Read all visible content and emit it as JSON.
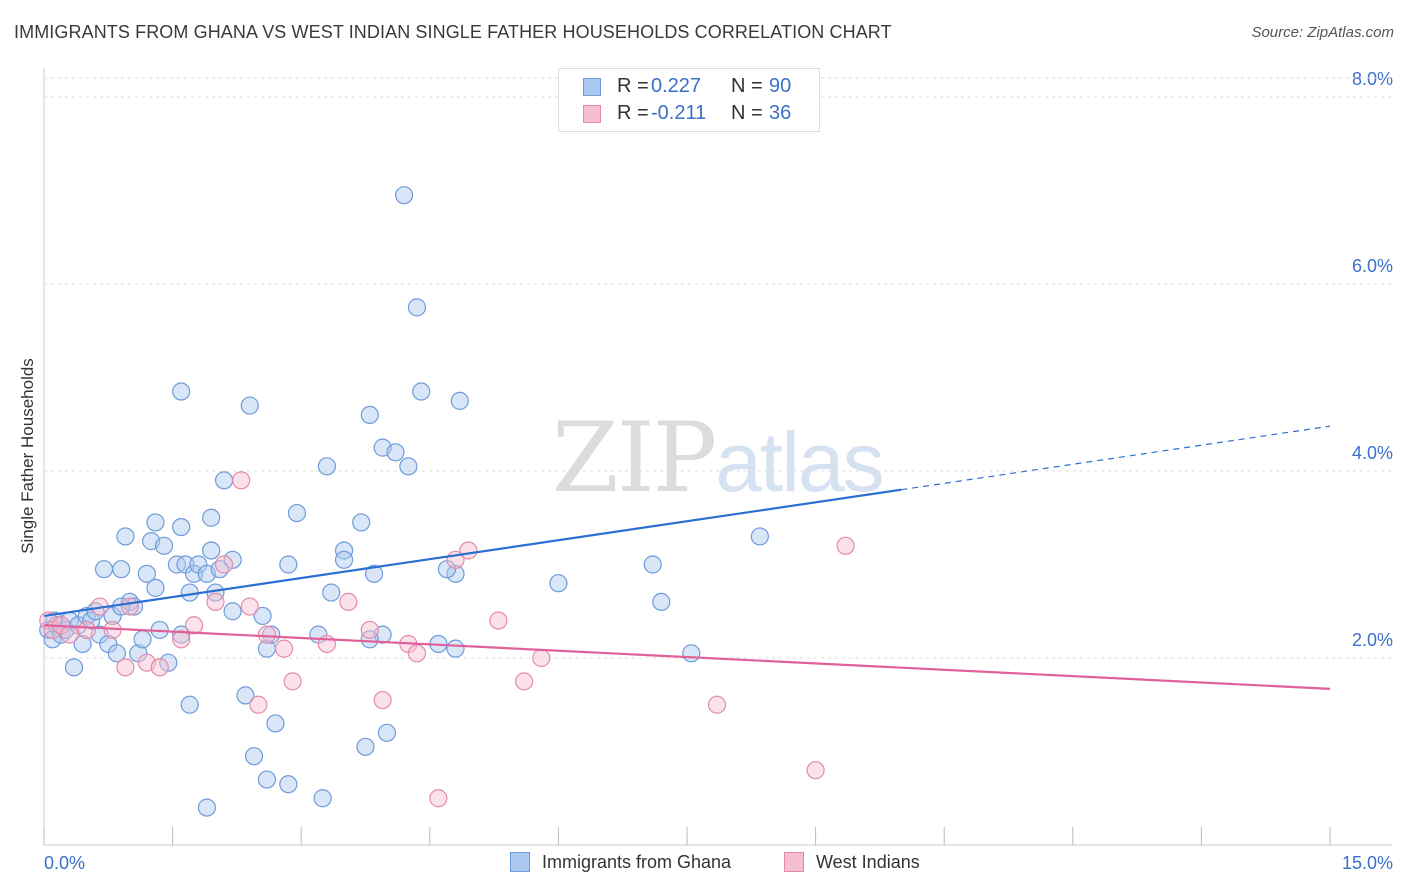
{
  "title": "IMMIGRANTS FROM GHANA VS WEST INDIAN SINGLE FATHER HOUSEHOLDS CORRELATION CHART",
  "source": "Source: ZipAtlas.com",
  "watermark": {
    "zip": "ZIP",
    "atlas": "atlas"
  },
  "legend_top": {
    "rows": [
      {
        "label": "R =",
        "r": "0.227",
        "n_label": "N =",
        "n": "90"
      },
      {
        "label": "R =",
        "r": "-0.211",
        "n_label": "N =",
        "n": "36"
      }
    ]
  },
  "colors": {
    "blue_fill": "#aac8f0",
    "blue_stroke": "#6f9bd8",
    "blue_line": "#2a6fd1",
    "pink_fill": "#f6bfd0",
    "pink_stroke": "#e58aa9",
    "pink_line": "#e0609a",
    "axis_text": "#3a70c8",
    "grid": "#dddddd"
  },
  "chart_data": {
    "type": "scatter",
    "title": "IMMIGRANTS FROM GHANA VS WEST INDIAN SINGLE FATHER HOUSEHOLDS CORRELATION CHART",
    "xlabel": "",
    "ylabel": "Single Father Households",
    "xlim": [
      0,
      15
    ],
    "ylim": [
      0,
      8
    ],
    "x_tick_labels": [
      "0.0%",
      "15.0%"
    ],
    "y_ticks": [
      2,
      4,
      6,
      8
    ],
    "y_tick_labels": [
      "2.0%",
      "4.0%",
      "6.0%",
      "8.0%"
    ],
    "grid": true,
    "series": [
      {
        "name": "Immigrants from Ghana",
        "color": "blue",
        "points": [
          [
            0.05,
            2.3
          ],
          [
            0.1,
            2.2
          ],
          [
            0.12,
            2.4
          ],
          [
            0.15,
            2.35
          ],
          [
            0.2,
            2.25
          ],
          [
            0.25,
            2.3
          ],
          [
            0.3,
            2.4
          ],
          [
            0.35,
            1.9
          ],
          [
            0.4,
            2.35
          ],
          [
            0.45,
            2.15
          ],
          [
            0.5,
            2.45
          ],
          [
            0.55,
            2.4
          ],
          [
            0.6,
            2.5
          ],
          [
            0.65,
            2.25
          ],
          [
            0.7,
            2.95
          ],
          [
            0.75,
            2.15
          ],
          [
            0.8,
            2.45
          ],
          [
            0.85,
            2.05
          ],
          [
            0.9,
            2.95
          ],
          [
            0.95,
            3.3
          ],
          [
            1.0,
            2.6
          ],
          [
            1.05,
            2.55
          ],
          [
            1.1,
            2.05
          ],
          [
            1.15,
            2.2
          ],
          [
            1.2,
            2.9
          ],
          [
            1.25,
            3.25
          ],
          [
            1.3,
            2.75
          ],
          [
            1.35,
            2.3
          ],
          [
            1.4,
            3.2
          ],
          [
            1.45,
            1.95
          ],
          [
            1.55,
            3.0
          ],
          [
            1.6,
            2.25
          ],
          [
            1.65,
            3.0
          ],
          [
            1.7,
            2.7
          ],
          [
            1.75,
            2.9
          ],
          [
            1.8,
            3.0
          ],
          [
            1.3,
            3.45
          ],
          [
            1.6,
            3.4
          ],
          [
            1.9,
            2.9
          ],
          [
            1.95,
            3.15
          ],
          [
            2.0,
            2.7
          ],
          [
            2.05,
            2.95
          ],
          [
            2.2,
            3.05
          ],
          [
            2.1,
            3.9
          ],
          [
            1.95,
            3.5
          ],
          [
            1.6,
            4.85
          ],
          [
            2.4,
            4.7
          ],
          [
            2.35,
            1.6
          ],
          [
            2.55,
            2.45
          ],
          [
            2.45,
            0.95
          ],
          [
            2.6,
            2.1
          ],
          [
            2.7,
            1.3
          ],
          [
            2.6,
            0.7
          ],
          [
            2.85,
            3.0
          ],
          [
            2.85,
            0.65
          ],
          [
            2.95,
            3.55
          ],
          [
            2.65,
            2.25
          ],
          [
            3.2,
            2.25
          ],
          [
            3.3,
            4.05
          ],
          [
            3.35,
            2.7
          ],
          [
            3.5,
            3.15
          ],
          [
            3.5,
            3.05
          ],
          [
            3.7,
            3.45
          ],
          [
            3.8,
            4.6
          ],
          [
            3.95,
            4.25
          ],
          [
            3.85,
            2.9
          ],
          [
            4.1,
            4.2
          ],
          [
            4.25,
            4.05
          ],
          [
            3.95,
            2.25
          ],
          [
            3.75,
            1.05
          ],
          [
            4.0,
            1.2
          ],
          [
            4.2,
            6.95
          ],
          [
            4.35,
            5.75
          ],
          [
            4.4,
            4.85
          ],
          [
            4.85,
            4.75
          ],
          [
            4.8,
            2.9
          ],
          [
            4.7,
            2.95
          ],
          [
            4.6,
            2.15
          ],
          [
            4.8,
            2.1
          ],
          [
            6.0,
            2.8
          ],
          [
            7.1,
            3.0
          ],
          [
            7.2,
            2.6
          ],
          [
            7.55,
            2.05
          ],
          [
            8.35,
            3.3
          ],
          [
            1.7,
            1.5
          ],
          [
            1.9,
            0.4
          ],
          [
            3.25,
            0.5
          ],
          [
            3.8,
            2.2
          ],
          [
            2.2,
            2.5
          ],
          [
            0.9,
            2.55
          ]
        ]
      },
      {
        "name": "West Indians",
        "color": "pink",
        "points": [
          [
            0.05,
            2.4
          ],
          [
            0.1,
            2.3
          ],
          [
            0.2,
            2.35
          ],
          [
            0.3,
            2.25
          ],
          [
            0.5,
            2.3
          ],
          [
            0.65,
            2.55
          ],
          [
            0.8,
            2.3
          ],
          [
            0.95,
            1.9
          ],
          [
            1.0,
            2.55
          ],
          [
            1.2,
            1.95
          ],
          [
            1.35,
            1.9
          ],
          [
            1.6,
            2.2
          ],
          [
            1.75,
            2.35
          ],
          [
            2.0,
            2.6
          ],
          [
            2.1,
            3.0
          ],
          [
            2.3,
            3.9
          ],
          [
            2.4,
            2.55
          ],
          [
            2.5,
            1.5
          ],
          [
            2.6,
            2.25
          ],
          [
            2.8,
            2.1
          ],
          [
            2.9,
            1.75
          ],
          [
            3.3,
            2.15
          ],
          [
            3.55,
            2.6
          ],
          [
            3.8,
            2.3
          ],
          [
            3.95,
            1.55
          ],
          [
            4.25,
            2.15
          ],
          [
            4.35,
            2.05
          ],
          [
            4.6,
            0.5
          ],
          [
            4.8,
            3.05
          ],
          [
            4.95,
            3.15
          ],
          [
            5.3,
            2.4
          ],
          [
            5.6,
            1.75
          ],
          [
            5.8,
            2.0
          ],
          [
            7.85,
            1.5
          ],
          [
            9.0,
            0.8
          ],
          [
            9.35,
            3.2
          ]
        ]
      }
    ],
    "trend_lines": [
      {
        "series": "Immigrants from Ghana",
        "x_start": 0,
        "y_start": 2.45,
        "x_end": 10.0,
        "y_end": 3.8,
        "dashed_to_x": 15,
        "dashed_to_y": 4.48
      },
      {
        "series": "West Indians",
        "x_start": 0,
        "y_start": 2.35,
        "x_end": 15,
        "y_end": 1.67
      }
    ]
  },
  "bottom_legend": [
    {
      "label": "Immigrants from Ghana"
    },
    {
      "label": "West Indians"
    }
  ]
}
